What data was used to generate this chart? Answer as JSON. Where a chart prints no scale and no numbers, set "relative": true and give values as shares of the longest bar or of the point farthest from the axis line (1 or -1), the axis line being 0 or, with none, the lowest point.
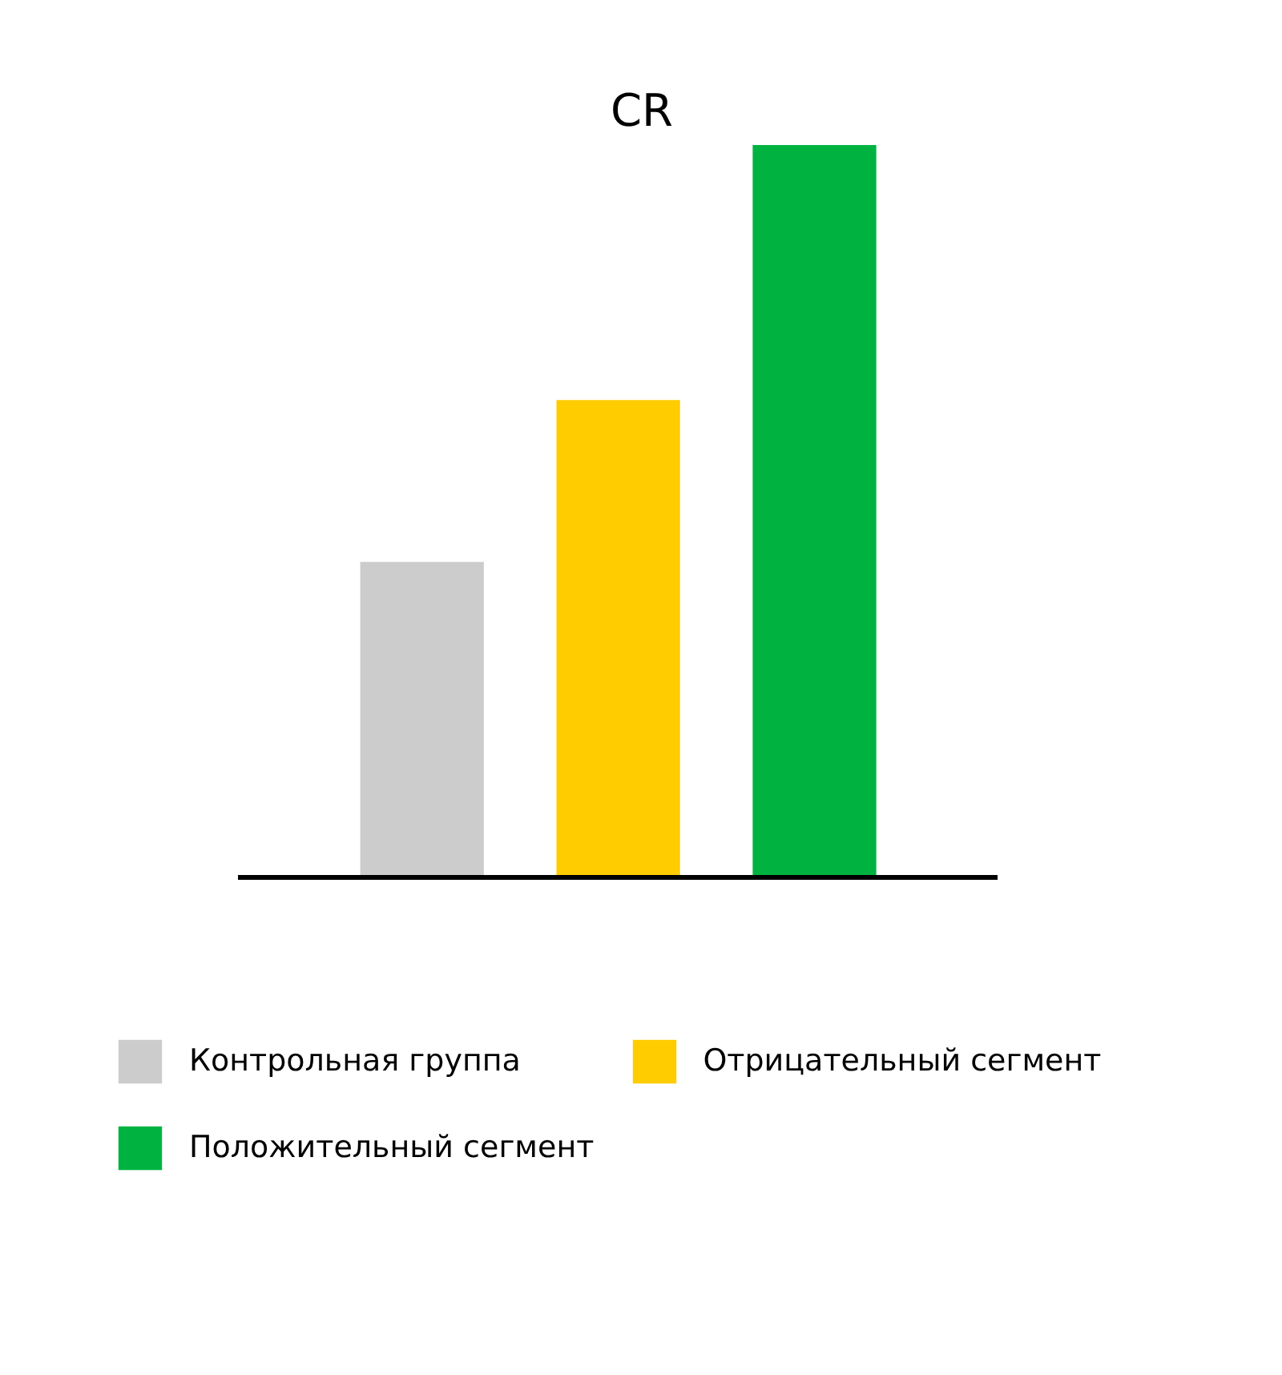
{
  "chart_data": {
    "type": "bar",
    "title": "CR",
    "relative": true,
    "stacked": true,
    "categories": [
      null,
      null,
      null
    ],
    "series": [
      {
        "name": "Контрольная группа",
        "color": "#cccccc",
        "values": [
          0.431,
          null,
          null
        ]
      },
      {
        "name": "Отрицательный сегмент",
        "color": "#ffcc00",
        "values": [
          null,
          0.652,
          null
        ]
      },
      {
        "name": "Положительный сегмент",
        "color": "#00b341",
        "values": [
          null,
          null,
          1
        ]
      }
    ],
    "legend": "bottom"
  }
}
